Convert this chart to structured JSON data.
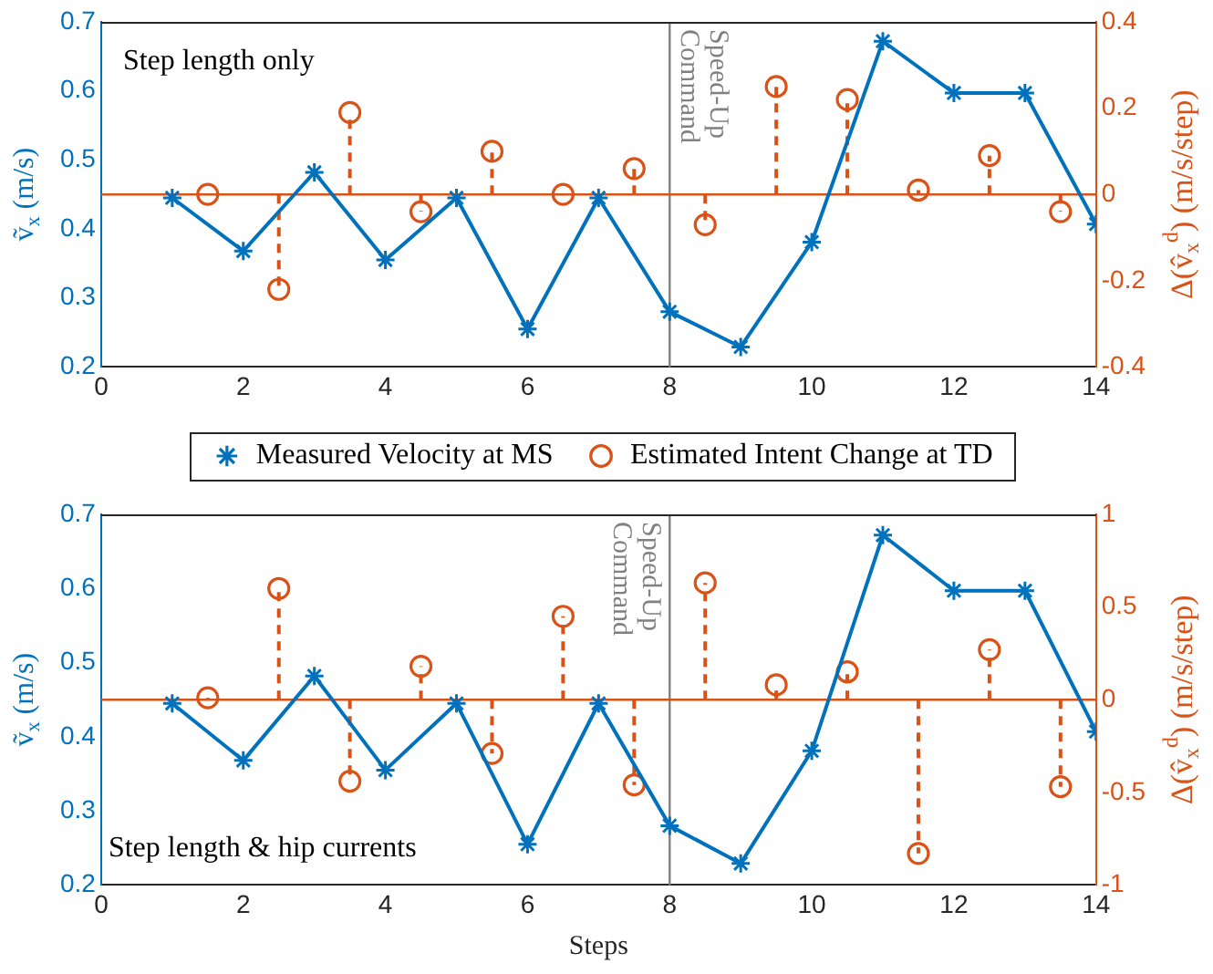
{
  "chart_data": [
    {
      "type": "line",
      "x": [
        1,
        2,
        3,
        4,
        5,
        6,
        7,
        8,
        9,
        10,
        11,
        12,
        13,
        14
      ],
      "series": [
        {
          "name": "Measured Velocity at MS",
          "type": "line",
          "color": "#0072bd",
          "marker": "cross",
          "line_style": "solid",
          "values": [
            0.445,
            0.368,
            0.482,
            0.355,
            0.445,
            0.255,
            0.445,
            0.28,
            0.229,
            0.381,
            0.672,
            0.597,
            0.597,
            0.407
          ]
        },
        {
          "name": "Estimated Intent Change at TD",
          "type": "lollipop",
          "axis": "y2",
          "color": "#d95319",
          "marker": "circle",
          "line_style": "dashed",
          "x": [
            1.5,
            2.5,
            3.5,
            4.5,
            5.5,
            6.5,
            7.5,
            8.5,
            9.5,
            10.5,
            11.5,
            12.5,
            13.5
          ],
          "values": [
            0,
            -0.22,
            0.19,
            -0.04,
            0.1,
            0,
            0.06,
            -0.07,
            0.25,
            0.22,
            0.01,
            0.09,
            -0.04
          ]
        }
      ],
      "xlim": [
        0,
        14
      ],
      "xticks": [
        0,
        2,
        4,
        6,
        8,
        10,
        12,
        14
      ],
      "ylim": [
        0.2,
        0.7
      ],
      "yticks": [
        0.2,
        0.3,
        0.4,
        0.5,
        0.6,
        0.7
      ],
      "y2lim": [
        -0.4,
        0.4
      ],
      "y2ticks": [
        -0.4,
        -0.2,
        0,
        0.2,
        0.4
      ],
      "ylabel": "ṽ$_{x}$ (m/s)",
      "y2label": "Δ(v̂$_{x}$$^{d}$) (m/s/step)",
      "annotations": [
        "Step length only"
      ],
      "ref_lines": [
        {
          "axis": "x",
          "value": 8,
          "label": "Speed-Up Command",
          "color": "#808080"
        },
        {
          "axis": "y2",
          "value": 0,
          "color": "#d95319"
        }
      ],
      "grid": false,
      "legend": "bottom"
    },
    {
      "type": "line",
      "x": [
        1,
        2,
        3,
        4,
        5,
        6,
        7,
        8,
        9,
        10,
        11,
        12,
        13,
        14
      ],
      "series": [
        {
          "type": "line",
          "color": "#0072bd",
          "marker": "cross",
          "line_style": "solid",
          "values": [
            0.445,
            0.368,
            0.482,
            0.355,
            0.445,
            0.255,
            0.445,
            0.28,
            0.229,
            0.381,
            0.672,
            0.597,
            0.597,
            0.407
          ]
        },
        {
          "type": "lollipop",
          "axis": "y2",
          "color": "#d95319",
          "marker": "circle",
          "line_style": "dashed",
          "x": [
            1.5,
            2.5,
            3.5,
            4.5,
            5.5,
            6.5,
            7.5,
            8.5,
            9.5,
            10.5,
            11.5,
            12.5,
            13.5
          ],
          "values": [
            0.01,
            0.6,
            -0.44,
            0.18,
            -0.29,
            0.45,
            -0.46,
            0.63,
            0.08,
            0.15,
            -0.83,
            0.27,
            -0.47
          ]
        }
      ],
      "xlim": [
        0,
        14
      ],
      "xticks": [
        0,
        2,
        4,
        6,
        8,
        10,
        12,
        14
      ],
      "ylim": [
        0.2,
        0.7
      ],
      "yticks": [
        0.2,
        0.3,
        0.4,
        0.5,
        0.6,
        0.7
      ],
      "y2lim": [
        -1,
        1
      ],
      "y2ticks": [
        -1,
        -0.5,
        0,
        0.5,
        1
      ],
      "xlabel": "Steps",
      "ylabel": "ṽ$_{x}$ (m/s)",
      "y2label": "Δ(v̂$_{x}$$^{d}$) (m/s/step)",
      "annotations": [
        "Step length & hip currents"
      ],
      "ref_lines": [
        {
          "axis": "x",
          "value": 8,
          "label": "Speed-Up Command",
          "color": "#808080"
        },
        {
          "axis": "y2",
          "value": 0,
          "color": "#d95319"
        }
      ],
      "grid": false,
      "legend": false
    }
  ]
}
